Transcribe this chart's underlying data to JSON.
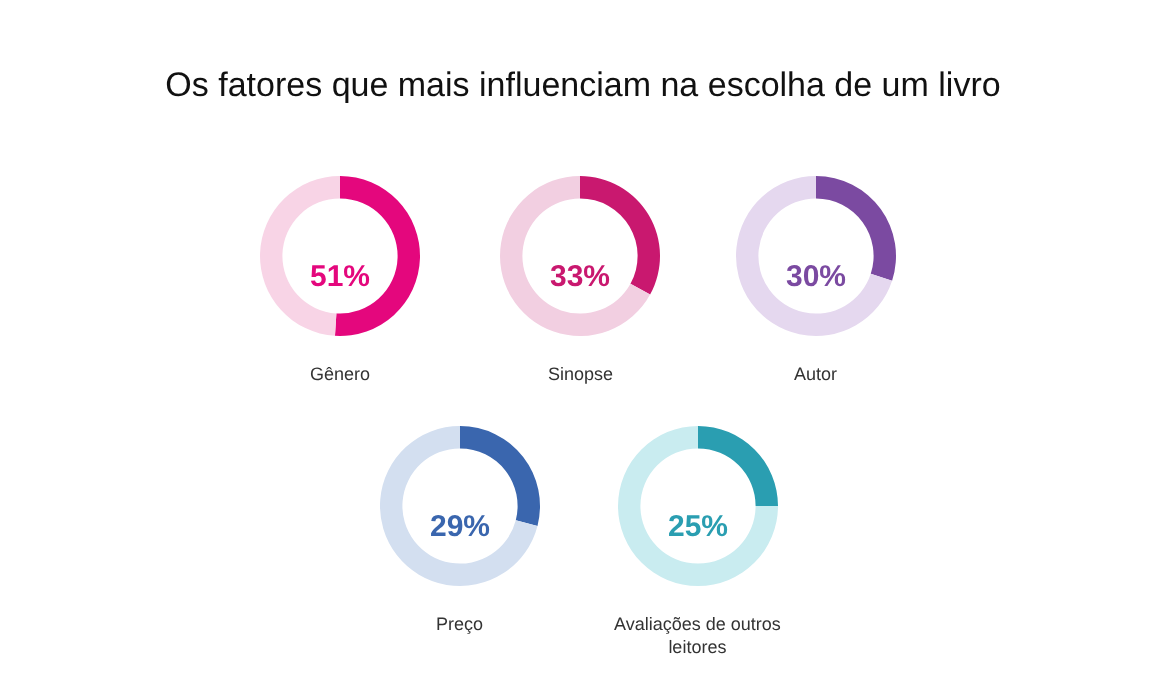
{
  "chart_data": [
    {
      "type": "other",
      "title": "Os fatores que mais influenciam na escolha de um livro"
    },
    {
      "type": "donut",
      "title": "Gênero",
      "categories": [
        null,
        null
      ],
      "values": [
        51,
        49
      ],
      "colors": [
        "#e4077d",
        "#f8d4e6"
      ],
      "annotations": [
        "51%"
      ]
    },
    {
      "type": "donut",
      "title": "Sinopse",
      "categories": [
        null,
        null
      ],
      "values": [
        33,
        67
      ],
      "colors": [
        "#c9186f",
        "#f2cfe1"
      ],
      "annotations": [
        "33%"
      ]
    },
    {
      "type": "donut",
      "title": "Autor",
      "categories": [
        null,
        null
      ],
      "values": [
        30,
        70
      ],
      "colors": [
        "#7b4aa1",
        "#e5d8ef"
      ],
      "annotations": [
        "30%"
      ]
    },
    {
      "type": "donut",
      "title": "Preço",
      "categories": [
        null,
        null
      ],
      "values": [
        29,
        71
      ],
      "colors": [
        "#3a66ae",
        "#d3dff0"
      ],
      "annotations": [
        "29%"
      ]
    },
    {
      "type": "donut",
      "title": "Avaliações de outros leitores",
      "categories": [
        null,
        null
      ],
      "values": [
        25,
        75
      ],
      "colors": [
        "#2a9eb1",
        "#c9ecf0"
      ],
      "annotations": [
        "25%"
      ]
    }
  ]
}
